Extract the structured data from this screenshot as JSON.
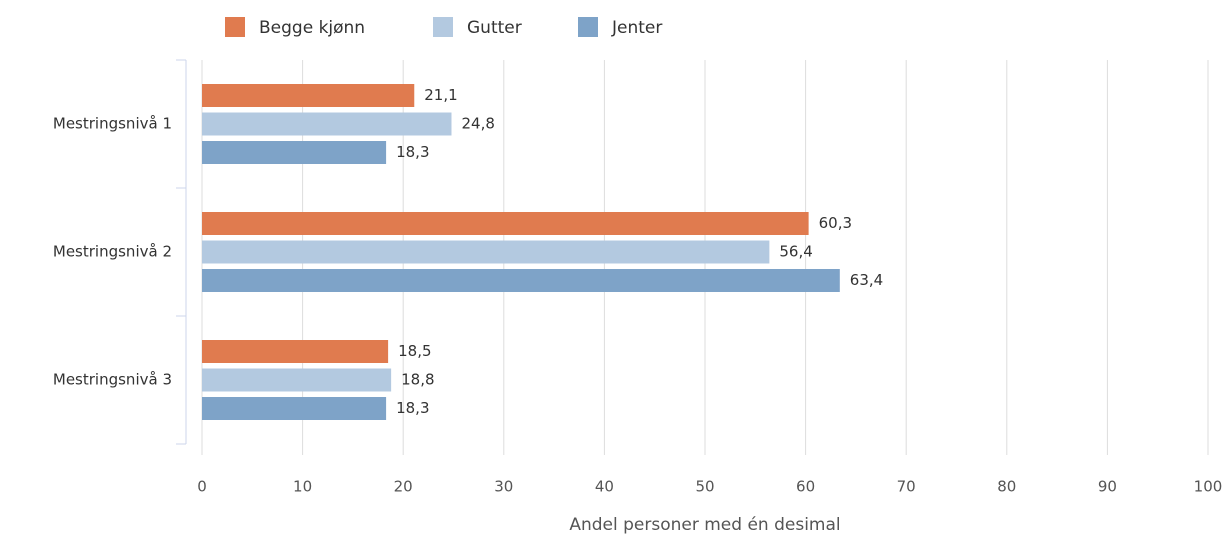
{
  "chart_data": {
    "type": "bar",
    "orientation": "horizontal",
    "x_label": "Andel personer med én desimal",
    "categories": [
      "Mestringsnivå 1",
      "Mestringsnivå 2",
      "Mestringsnivå 3"
    ],
    "series": [
      {
        "name": "Begge kjønn",
        "color": "#e07b4f",
        "values": [
          21.1,
          60.3,
          18.5
        ],
        "value_labels": [
          "21,1",
          "60,3",
          "18,5"
        ]
      },
      {
        "name": "Gutter",
        "color": "#b3c9e0",
        "values": [
          24.8,
          56.4,
          18.8
        ],
        "value_labels": [
          "24,8",
          "56,4",
          "18,8"
        ]
      },
      {
        "name": "Jenter",
        "color": "#7ea3c8",
        "values": [
          18.3,
          63.4,
          18.3
        ],
        "value_labels": [
          "18,3",
          "63,4",
          "18,3"
        ]
      }
    ],
    "xlim": [
      0,
      100
    ],
    "xticks": [
      0,
      10,
      20,
      30,
      40,
      50,
      60,
      70,
      80,
      90,
      100
    ],
    "grid": true,
    "legend": "top"
  }
}
